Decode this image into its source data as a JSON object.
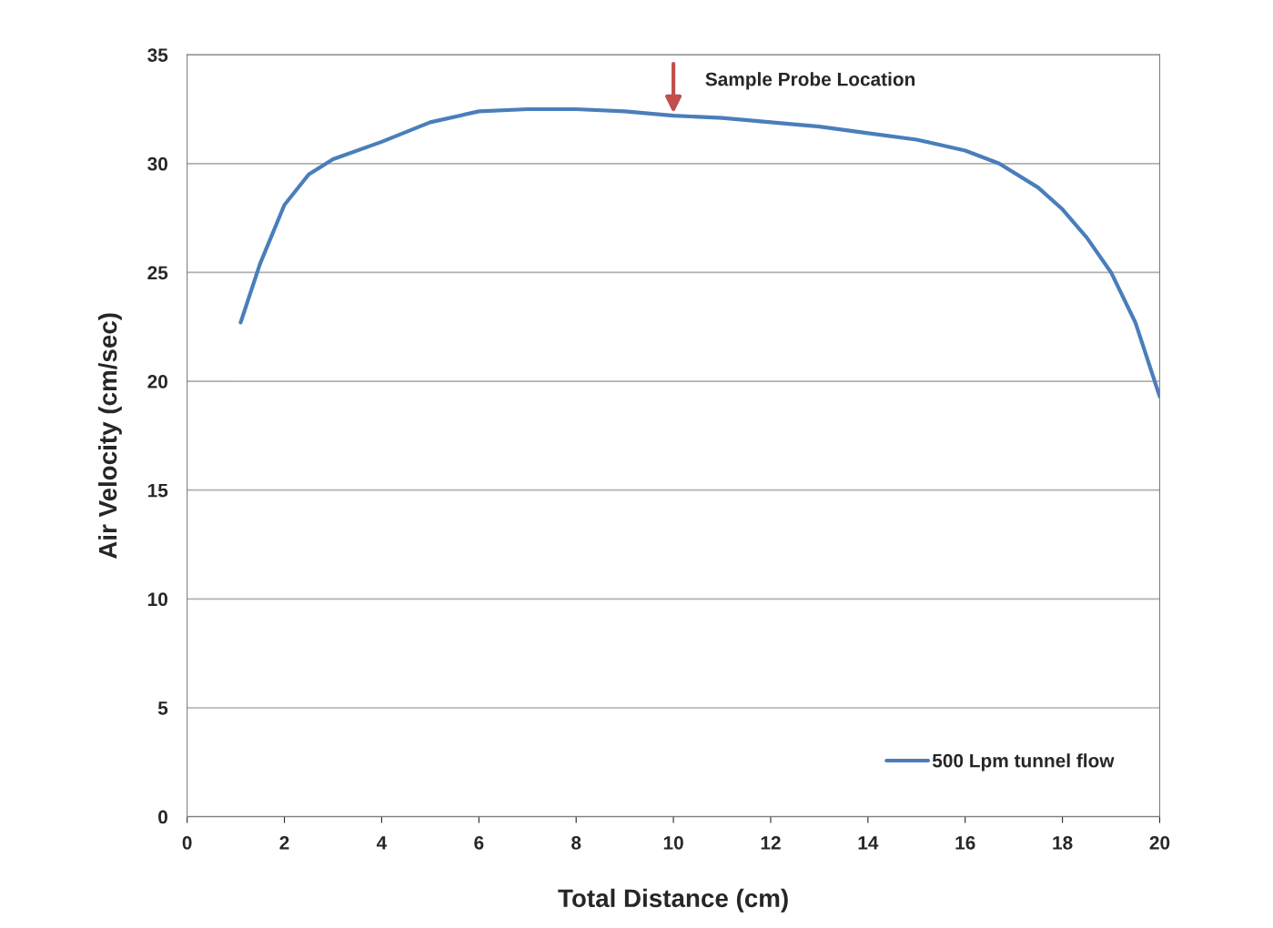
{
  "chart_data": {
    "type": "line",
    "xlabel": "Total Distance (cm)",
    "ylabel": "Air Velocity (cm/sec)",
    "x": [
      1.1,
      1.5,
      2,
      2.5,
      3,
      4,
      5,
      6,
      7,
      8,
      9,
      10,
      11,
      12,
      13,
      14,
      15,
      16,
      16.7,
      17.5,
      18,
      18.5,
      19,
      19.5,
      20
    ],
    "series": [
      {
        "name": "500 Lpm tunnel flow",
        "color": "#4a7ebb",
        "values": [
          22.7,
          25.4,
          28.1,
          29.5,
          30.2,
          31.0,
          31.9,
          32.4,
          32.5,
          32.5,
          32.4,
          32.2,
          32.1,
          31.9,
          31.7,
          31.4,
          31.1,
          30.6,
          30.0,
          28.9,
          27.9,
          26.6,
          25.0,
          22.7,
          19.3
        ]
      }
    ],
    "annotations": [
      {
        "text": "Sample Probe Location",
        "x": 10,
        "y": 32.2
      }
    ],
    "xlim": [
      0,
      20
    ],
    "ylim": [
      0,
      35
    ],
    "xticks": [
      0,
      2,
      4,
      6,
      8,
      10,
      12,
      14,
      16,
      18,
      20
    ],
    "yticks": [
      0,
      5,
      10,
      15,
      20,
      25,
      30,
      35
    ],
    "grid": "y",
    "legend": "bottom right",
    "marker": "none",
    "line_style": "solid"
  }
}
